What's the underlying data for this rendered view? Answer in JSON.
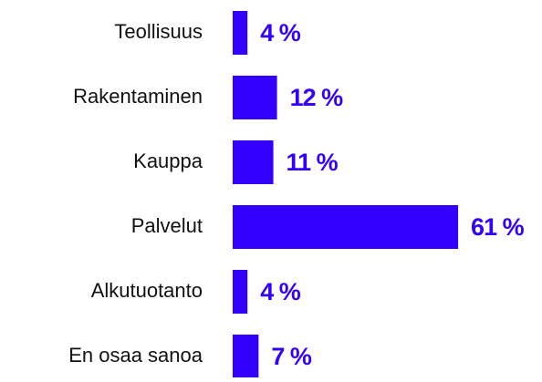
{
  "chart_data": {
    "type": "bar",
    "orientation": "horizontal",
    "categories": [
      "Teollisuus",
      "Rakentaminen",
      "Kauppa",
      "Palvelut",
      "Alkutuotanto",
      "En osaa sanoa"
    ],
    "values": [
      4,
      12,
      11,
      61,
      4,
      7
    ],
    "value_labels": [
      "4 %",
      "12 %",
      "11 %",
      "61 %",
      "4 %",
      "7 %"
    ],
    "color": "#3300ff",
    "xlim": [
      0,
      80
    ]
  }
}
